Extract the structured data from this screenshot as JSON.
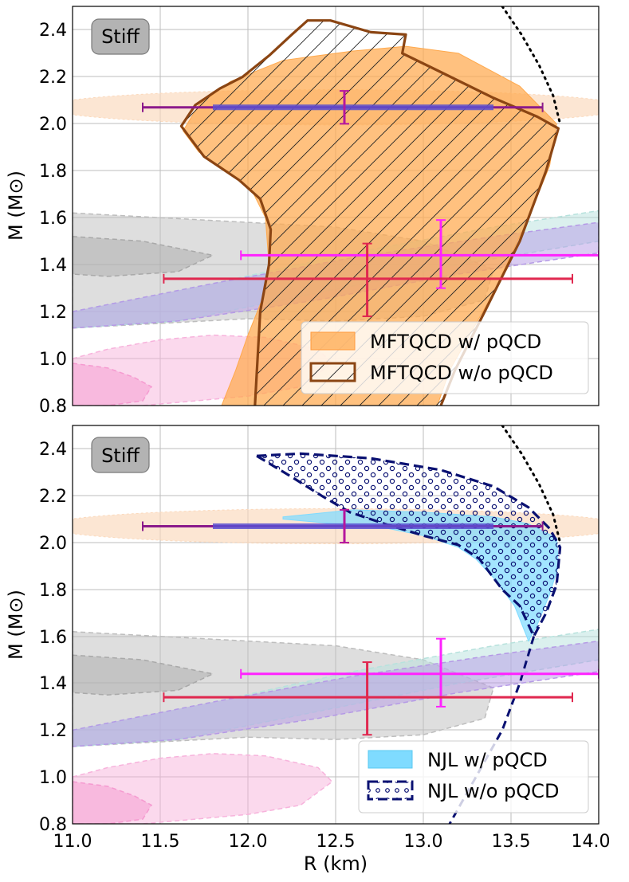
{
  "chart_data": [
    {
      "panel": "top",
      "type": "area",
      "badge": "Stiff",
      "xlim": [
        11.0,
        14.0
      ],
      "ylim": [
        0.8,
        2.5
      ],
      "x_ticks": [
        11.0,
        11.5,
        12.0,
        12.5,
        13.0,
        13.5,
        14.0
      ],
      "y_ticks": [
        "0.8",
        "1.0",
        "1.2",
        "1.4",
        "1.6",
        "1.8",
        "2.0",
        "2.2",
        "2.4"
      ],
      "xlabel": "",
      "ylabel": "M (M⊙)",
      "grid": true,
      "legend_position": "lower-right",
      "legend": [
        "MFTQCD w/ pQCD",
        "MFTQCD w/o pQCD"
      ],
      "series": [
        {
          "name": "MFTQCD w/ pQCD",
          "kind": "filled region",
          "color": "#ffa94d",
          "points": [
            [
              11.85,
              0.8
            ],
            [
              11.93,
              0.95
            ],
            [
              12.0,
              1.1
            ],
            [
              12.08,
              1.25
            ],
            [
              12.12,
              1.4
            ],
            [
              12.1,
              1.6
            ],
            [
              12.02,
              1.72
            ],
            [
              11.88,
              1.8
            ],
            [
              11.72,
              1.88
            ],
            [
              11.63,
              1.97
            ],
            [
              11.72,
              2.08
            ],
            [
              11.9,
              2.18
            ],
            [
              12.2,
              2.27
            ],
            [
              12.6,
              2.31
            ],
            [
              12.9,
              2.33
            ],
            [
              13.2,
              2.3
            ],
            [
              13.55,
              2.16
            ],
            [
              13.76,
              2.0
            ],
            [
              13.72,
              1.82
            ],
            [
              13.6,
              1.6
            ],
            [
              13.4,
              1.28
            ],
            [
              13.15,
              0.95
            ],
            [
              13.08,
              0.8
            ]
          ]
        },
        {
          "name": "MFTQCD w/o pQCD",
          "kind": "hatched region",
          "color": "#8b4513",
          "points": [
            [
              12.04,
              0.8
            ],
            [
              12.07,
              1.2
            ],
            [
              12.12,
              1.4
            ],
            [
              12.13,
              1.55
            ],
            [
              12.07,
              1.68
            ],
            [
              11.95,
              1.76
            ],
            [
              11.75,
              1.86
            ],
            [
              11.62,
              1.99
            ],
            [
              11.7,
              2.08
            ],
            [
              11.84,
              2.15
            ],
            [
              11.97,
              2.2
            ],
            [
              12.12,
              2.29
            ],
            [
              12.25,
              2.38
            ],
            [
              12.34,
              2.44
            ],
            [
              12.47,
              2.44
            ],
            [
              12.7,
              2.39
            ],
            [
              12.9,
              2.38
            ],
            [
              12.88,
              2.3
            ],
            [
              13.1,
              2.22
            ],
            [
              13.4,
              2.11
            ],
            [
              13.65,
              2.03
            ],
            [
              13.77,
              1.98
            ],
            [
              13.7,
              1.8
            ],
            [
              13.55,
              1.5
            ],
            [
              13.35,
              1.2
            ],
            [
              13.18,
              0.95
            ],
            [
              13.1,
              0.8
            ]
          ]
        },
        {
          "name": "causality boundary",
          "kind": "dotted line",
          "color": "#000000",
          "points": [
            [
              13.45,
              2.5
            ],
            [
              13.56,
              2.38
            ],
            [
              13.66,
              2.25
            ],
            [
              13.74,
              2.12
            ],
            [
              13.78,
              2.0
            ]
          ]
        }
      ],
      "constraints": [
        {
          "kind": "horizontal error bar",
          "color": "#8b1a8b",
          "y": 2.07,
          "x": [
            11.4,
            13.68
          ],
          "center": 12.55
        },
        {
          "kind": "horizontal band",
          "color": "#5a4fd0",
          "y": 2.07,
          "x": [
            11.8,
            13.4
          ]
        },
        {
          "kind": "vertical error bar",
          "color": "#b5179e",
          "x": 12.55,
          "y": [
            2.0,
            2.14
          ]
        },
        {
          "kind": "horizontal error bar",
          "color": "#ff22ff",
          "y": 1.44,
          "x": [
            11.96,
            14.0
          ],
          "center": 13.1
        },
        {
          "kind": "vertical error bar",
          "color": "#ff22ff",
          "x": 13.1,
          "y": [
            1.3,
            1.59
          ]
        },
        {
          "kind": "horizontal error bar",
          "color": "#e0284f",
          "y": 1.34,
          "x": [
            11.52,
            13.85
          ],
          "center": 12.68
        },
        {
          "kind": "vertical error bar",
          "color": "#e0284f",
          "x": 12.68,
          "y": [
            1.18,
            1.49
          ]
        }
      ]
    },
    {
      "panel": "bottom",
      "type": "area",
      "badge": "Stiff",
      "xlim": [
        11.0,
        14.0
      ],
      "ylim": [
        0.8,
        2.5
      ],
      "x_ticks": [
        "11.0",
        "11.5",
        "12.0",
        "12.5",
        "13.0",
        "13.5",
        "14.0"
      ],
      "y_ticks": [
        "0.8",
        "1.0",
        "1.2",
        "1.4",
        "1.6",
        "1.8",
        "2.0",
        "2.2",
        "2.4"
      ],
      "xlabel": "R (km)",
      "ylabel": "M (M⊙)",
      "grid": true,
      "legend_position": "lower-right",
      "legend": [
        "NJL w/ pQCD",
        "NJL w/o pQCD"
      ],
      "series": [
        {
          "name": "NJL w/ pQCD",
          "kind": "filled region",
          "color": "#7fdbff",
          "points": [
            [
              12.2,
              2.11
            ],
            [
              12.6,
              2.14
            ],
            [
              13.0,
              2.13
            ],
            [
              13.4,
              2.11
            ],
            [
              13.6,
              2.08
            ],
            [
              13.76,
              2.02
            ],
            [
              13.77,
              1.9
            ],
            [
              13.72,
              1.78
            ],
            [
              13.65,
              1.65
            ],
            [
              13.6,
              1.58
            ],
            [
              13.52,
              1.73
            ],
            [
              13.4,
              1.85
            ],
            [
              13.3,
              1.93
            ],
            [
              13.2,
              1.98
            ],
            [
              13.0,
              2.03
            ],
            [
              12.8,
              2.06
            ],
            [
              12.5,
              2.08
            ],
            [
              12.2,
              2.1
            ]
          ]
        },
        {
          "name": "NJL w/o pQCD",
          "kind": "dotted-hatch region",
          "color": "#0a1172",
          "points": [
            [
              12.05,
              2.37
            ],
            [
              12.3,
              2.38
            ],
            [
              12.7,
              2.36
            ],
            [
              13.1,
              2.31
            ],
            [
              13.4,
              2.24
            ],
            [
              13.6,
              2.15
            ],
            [
              13.72,
              2.06
            ],
            [
              13.78,
              1.98
            ],
            [
              13.76,
              1.82
            ],
            [
              13.7,
              1.7
            ],
            [
              13.63,
              1.6
            ],
            [
              13.55,
              1.73
            ],
            [
              13.45,
              1.8
            ],
            [
              13.32,
              1.93
            ],
            [
              13.2,
              1.99
            ],
            [
              13.0,
              2.03
            ],
            [
              12.78,
              2.08
            ],
            [
              12.58,
              2.13
            ],
            [
              12.42,
              2.2
            ],
            [
              12.25,
              2.28
            ],
            [
              12.05,
              2.37
            ]
          ]
        },
        {
          "name": "causality boundary",
          "kind": "dotted line",
          "color": "#000000",
          "points": [
            [
              13.45,
              2.5
            ],
            [
              13.56,
              2.38
            ],
            [
              13.66,
              2.25
            ],
            [
              13.74,
              2.12
            ],
            [
              13.78,
              2.0
            ]
          ]
        },
        {
          "name": "low-mass branch",
          "kind": "dashed line",
          "color": "#0a1172",
          "points": [
            [
              13.63,
              1.6
            ],
            [
              13.55,
              1.4
            ],
            [
              13.45,
              1.2
            ],
            [
              13.3,
              1.0
            ],
            [
              13.15,
              0.8
            ]
          ]
        }
      ],
      "constraints": [
        {
          "kind": "horizontal error bar",
          "color": "#8b1a8b",
          "y": 2.07,
          "x": [
            11.4,
            13.68
          ],
          "center": 12.55
        },
        {
          "kind": "horizontal band",
          "color": "#5a4fd0",
          "y": 2.07,
          "x": [
            11.8,
            13.4
          ]
        },
        {
          "kind": "vertical error bar",
          "color": "#b5179e",
          "x": 12.55,
          "y": [
            2.0,
            2.14
          ]
        },
        {
          "kind": "horizontal error bar",
          "color": "#ff22ff",
          "y": 1.44,
          "x": [
            11.96,
            14.0
          ],
          "center": 13.1
        },
        {
          "kind": "vertical error bar",
          "color": "#ff22ff",
          "x": 13.1,
          "y": [
            1.3,
            1.59
          ]
        },
        {
          "kind": "horizontal error bar",
          "color": "#e0284f",
          "y": 1.34,
          "x": [
            11.52,
            13.85
          ],
          "center": 12.68
        },
        {
          "kind": "vertical error bar",
          "color": "#e0284f",
          "x": 12.68,
          "y": [
            1.18,
            1.49
          ]
        }
      ]
    }
  ],
  "background_regions": [
    {
      "name": "mass-measurement band",
      "kind": "ellipse",
      "color": "#fbd9bc",
      "cx": 12.5,
      "cy": 2.07,
      "rx": 1.65,
      "ry": 0.075
    },
    {
      "name": "grey posterior outer",
      "kind": "filled region",
      "color": "#bdbdbd",
      "points": [
        [
          11.0,
          1.62
        ],
        [
          11.5,
          1.6
        ],
        [
          12.0,
          1.58
        ],
        [
          12.5,
          1.56
        ],
        [
          13.0,
          1.5
        ],
        [
          13.4,
          1.38
        ],
        [
          13.35,
          1.25
        ],
        [
          13.0,
          1.18
        ],
        [
          12.5,
          1.16
        ],
        [
          12.0,
          1.17
        ],
        [
          11.5,
          1.15
        ],
        [
          11.0,
          1.13
        ]
      ]
    },
    {
      "name": "grey posterior inner",
      "kind": "filled region",
      "color": "#a9a9a9",
      "points": [
        [
          11.0,
          1.52
        ],
        [
          11.4,
          1.5
        ],
        [
          11.8,
          1.44
        ],
        [
          11.6,
          1.37
        ],
        [
          11.2,
          1.35
        ],
        [
          11.0,
          1.36
        ]
      ]
    },
    {
      "name": "teal posterior",
      "kind": "filled region",
      "color": "#b7e2dd",
      "points": [
        [
          11.0,
          1.2
        ],
        [
          11.8,
          1.32
        ],
        [
          12.6,
          1.45
        ],
        [
          13.4,
          1.56
        ],
        [
          14.0,
          1.63
        ],
        [
          14.0,
          1.5
        ],
        [
          13.2,
          1.4
        ],
        [
          12.4,
          1.28
        ],
        [
          11.6,
          1.16
        ],
        [
          11.0,
          1.13
        ]
      ]
    },
    {
      "name": "purple posterior",
      "kind": "filled region",
      "color": "#b59ae6",
      "points": [
        [
          11.0,
          1.2
        ],
        [
          11.8,
          1.32
        ],
        [
          12.6,
          1.43
        ],
        [
          13.4,
          1.52
        ],
        [
          14.0,
          1.58
        ],
        [
          14.0,
          1.45
        ],
        [
          13.2,
          1.36
        ],
        [
          12.4,
          1.25
        ],
        [
          11.6,
          1.16
        ],
        [
          11.0,
          1.13
        ]
      ]
    },
    {
      "name": "pink posterior",
      "kind": "filled region",
      "color": "#f7b3dc",
      "points": [
        [
          11.0,
          1.0
        ],
        [
          11.2,
          1.04
        ],
        [
          11.5,
          1.08
        ],
        [
          11.8,
          1.1
        ],
        [
          12.1,
          1.09
        ],
        [
          12.4,
          1.04
        ],
        [
          12.48,
          0.98
        ],
        [
          12.3,
          0.88
        ],
        [
          12.0,
          0.84
        ],
        [
          11.7,
          0.82
        ],
        [
          11.4,
          0.8
        ],
        [
          11.0,
          0.8
        ]
      ]
    },
    {
      "name": "pink posterior inner",
      "kind": "filled region",
      "color": "#f59ad0",
      "points": [
        [
          11.0,
          0.98
        ],
        [
          11.2,
          0.96
        ],
        [
          11.35,
          0.92
        ],
        [
          11.45,
          0.88
        ],
        [
          11.4,
          0.82
        ],
        [
          11.2,
          0.8
        ],
        [
          11.0,
          0.8
        ]
      ]
    }
  ]
}
